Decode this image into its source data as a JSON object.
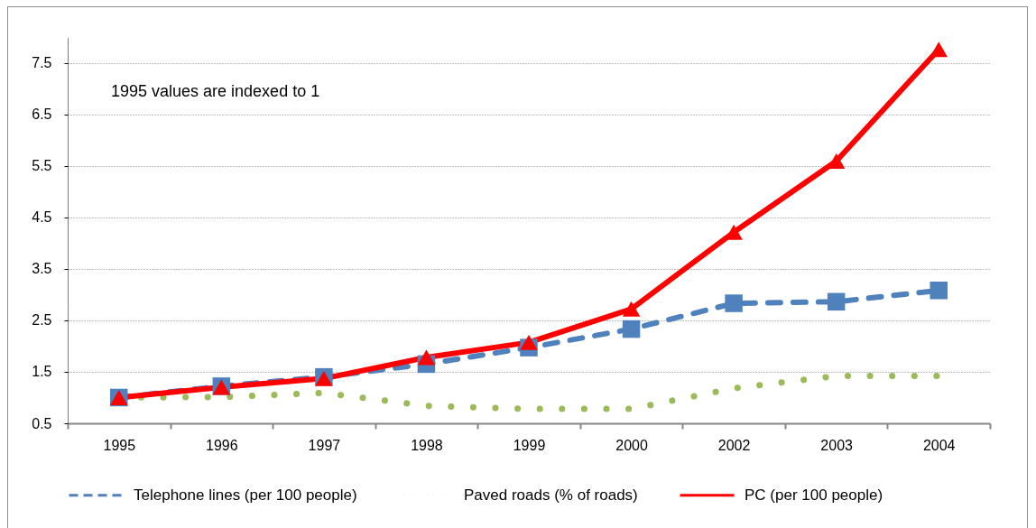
{
  "chart_data": {
    "type": "line",
    "annotations": [
      "1995 values are indexed to 1"
    ],
    "categories": [
      "1995",
      "1996",
      "1997",
      "1998",
      "1999",
      "2000",
      "2002",
      "2003",
      "2004"
    ],
    "series": [
      {
        "name": "Telephone lines (per 100 people)",
        "color": "#4f81bd",
        "marker": "square",
        "line_style": "dashed",
        "values": [
          1.0,
          1.22,
          1.4,
          1.65,
          1.97,
          2.33,
          2.83,
          2.86,
          3.08
        ]
      },
      {
        "name": "Paved roads (% of roads)",
        "color": "#9bbb59",
        "marker": "none",
        "line_style": "dotted",
        "values": [
          1.0,
          1.01,
          1.09,
          0.84,
          0.78,
          0.78,
          1.18,
          1.42,
          1.42
        ]
      },
      {
        "name": "PC (per 100 people)",
        "color": "#ff0000",
        "marker": "triangle",
        "line_style": "solid",
        "values": [
          1.0,
          1.2,
          1.37,
          1.78,
          2.07,
          2.72,
          4.21,
          5.59,
          7.76
        ]
      }
    ],
    "ylim": [
      0.5,
      8
    ],
    "yticks": [
      0.5,
      1.5,
      2.5,
      3.5,
      4.5,
      5.5,
      6.5,
      7.5
    ],
    "grid": "y",
    "legend": "bottom"
  }
}
